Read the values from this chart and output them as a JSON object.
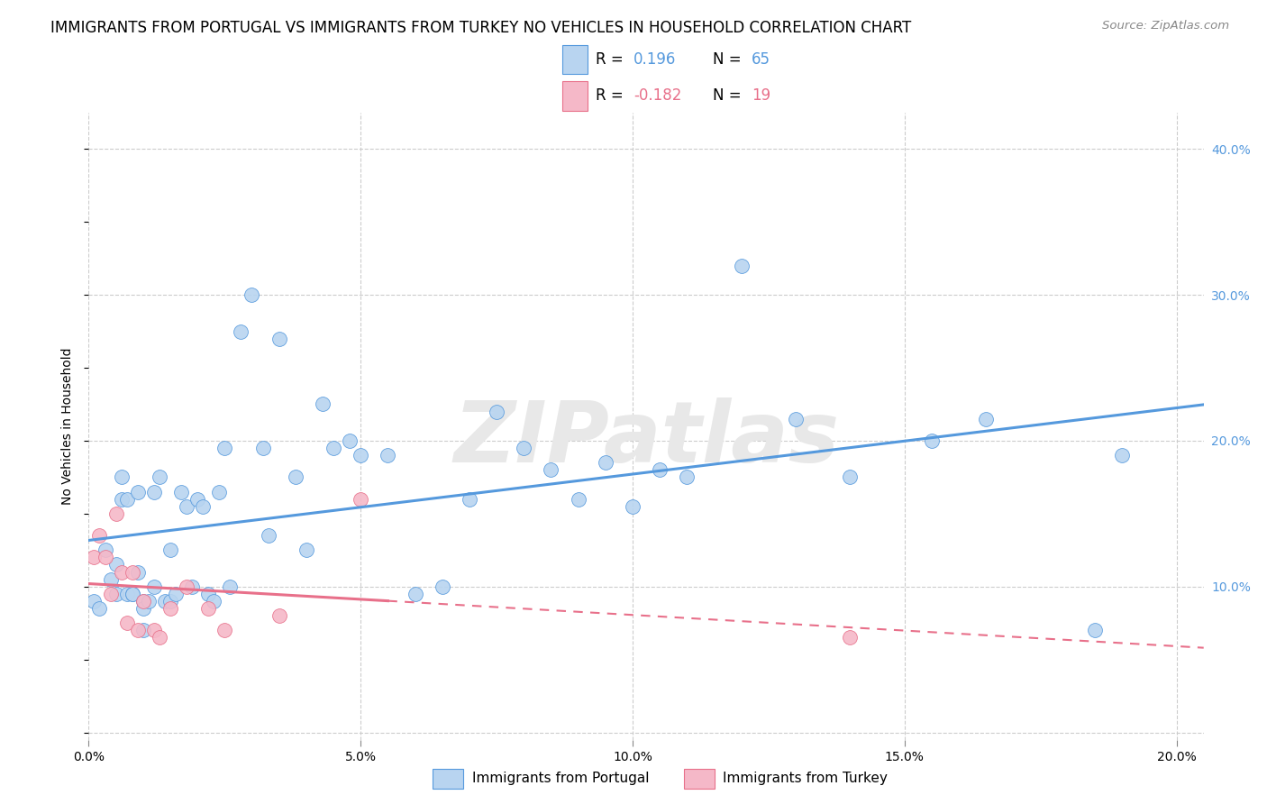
{
  "title": "IMMIGRANTS FROM PORTUGAL VS IMMIGRANTS FROM TURKEY NO VEHICLES IN HOUSEHOLD CORRELATION CHART",
  "source": "Source: ZipAtlas.com",
  "ylabel": "No Vehicles in Household",
  "legend_blue_label": "Immigrants from Portugal",
  "legend_pink_label": "Immigrants from Turkey",
  "r_blue": "0.196",
  "n_blue": "65",
  "r_pink": "-0.182",
  "n_pink": "19",
  "blue_color": "#b8d4f0",
  "pink_color": "#f5b8c8",
  "blue_line_color": "#5599dd",
  "pink_line_color": "#e8708a",
  "watermark_text": "ZIPatlas",
  "blue_points_x": [
    0.001,
    0.002,
    0.003,
    0.004,
    0.005,
    0.005,
    0.006,
    0.006,
    0.007,
    0.007,
    0.008,
    0.008,
    0.009,
    0.009,
    0.01,
    0.01,
    0.01,
    0.011,
    0.012,
    0.012,
    0.013,
    0.014,
    0.015,
    0.015,
    0.016,
    0.017,
    0.018,
    0.019,
    0.02,
    0.021,
    0.022,
    0.023,
    0.024,
    0.025,
    0.026,
    0.028,
    0.03,
    0.032,
    0.033,
    0.035,
    0.038,
    0.04,
    0.043,
    0.045,
    0.048,
    0.05,
    0.055,
    0.06,
    0.065,
    0.07,
    0.075,
    0.08,
    0.085,
    0.09,
    0.095,
    0.1,
    0.105,
    0.11,
    0.12,
    0.13,
    0.14,
    0.155,
    0.165,
    0.185,
    0.19
  ],
  "blue_points_y": [
    0.09,
    0.085,
    0.125,
    0.105,
    0.115,
    0.095,
    0.16,
    0.175,
    0.16,
    0.095,
    0.095,
    0.095,
    0.11,
    0.165,
    0.09,
    0.07,
    0.085,
    0.09,
    0.1,
    0.165,
    0.175,
    0.09,
    0.125,
    0.09,
    0.095,
    0.165,
    0.155,
    0.1,
    0.16,
    0.155,
    0.095,
    0.09,
    0.165,
    0.195,
    0.1,
    0.275,
    0.3,
    0.195,
    0.135,
    0.27,
    0.175,
    0.125,
    0.225,
    0.195,
    0.2,
    0.19,
    0.19,
    0.095,
    0.1,
    0.16,
    0.22,
    0.195,
    0.18,
    0.16,
    0.185,
    0.155,
    0.18,
    0.175,
    0.32,
    0.215,
    0.175,
    0.2,
    0.215,
    0.07,
    0.19
  ],
  "pink_points_x": [
    0.001,
    0.002,
    0.003,
    0.004,
    0.005,
    0.006,
    0.007,
    0.008,
    0.009,
    0.01,
    0.012,
    0.013,
    0.015,
    0.018,
    0.022,
    0.025,
    0.035,
    0.05,
    0.14
  ],
  "pink_points_y": [
    0.12,
    0.135,
    0.12,
    0.095,
    0.15,
    0.11,
    0.075,
    0.11,
    0.07,
    0.09,
    0.07,
    0.065,
    0.085,
    0.1,
    0.085,
    0.07,
    0.08,
    0.16,
    0.065
  ],
  "xlim": [
    0.0,
    0.205
  ],
  "ylim": [
    -0.005,
    0.425
  ],
  "xticks": [
    0.0,
    0.05,
    0.1,
    0.15,
    0.2
  ],
  "xtick_labels": [
    "0.0%",
    "5.0%",
    "10.0%",
    "15.0%",
    "20.0%"
  ],
  "yticks": [
    0.0,
    0.1,
    0.2,
    0.3,
    0.4
  ],
  "ytick_labels": [
    "",
    "10.0%",
    "20.0%",
    "30.0%",
    "40.0%"
  ],
  "background_color": "#ffffff",
  "grid_color": "#cccccc",
  "title_fontsize": 12,
  "tick_fontsize": 10,
  "ylabel_fontsize": 10
}
